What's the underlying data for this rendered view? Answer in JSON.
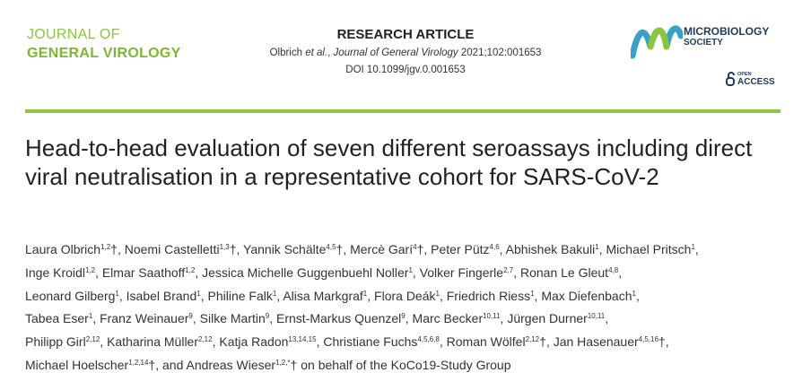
{
  "header": {
    "journal_line1": "JOURNAL OF",
    "journal_line2": "GENERAL VIROLOGY",
    "article_type": "RESEARCH ARTICLE",
    "citation": [
      "Olbrich ",
      "et al.",
      ", ",
      "Journal of General Virology",
      " 2021;102:001653"
    ],
    "doi": "DOI 10.1099/jgv.0.001653",
    "society_line1": "MICROBIOLOGY",
    "society_line2": "SOCIETY",
    "open": "OPEN",
    "access": "ACCESS"
  },
  "title": "Head-to-head evaluation of seven different seroassays including direct viral neutralisation in a representative cohort for SARS-CoV-2",
  "authors": [
    [
      {
        "name": "Laura Olbrich",
        "sup": "1,2",
        "mark": "†",
        "sep": ","
      },
      {
        "name": "Noemi Castelletti",
        "sup": "1,3",
        "mark": "†",
        "sep": ","
      },
      {
        "name": "Yannik Schälte",
        "sup": "4,5",
        "mark": "†",
        "sep": ","
      },
      {
        "name": "Mercè Garí",
        "sup": "4",
        "mark": "†",
        "sep": ","
      },
      {
        "name": "Peter Pütz",
        "sup": "4,6",
        "sep": ","
      },
      {
        "name": "Abhishek Bakuli",
        "sup": "1",
        "sep": ","
      },
      {
        "name": "Michael Pritsch",
        "sup": "1",
        "sep": ","
      }
    ],
    [
      {
        "name": "Inge Kroidl",
        "sup": "1,2",
        "sep": ","
      },
      {
        "name": "Elmar Saathoff",
        "sup": "1,2",
        "sep": ","
      },
      {
        "name": "Jessica Michelle Guggenbuehl Noller",
        "sup": "1",
        "sep": ","
      },
      {
        "name": "Volker Fingerle",
        "sup": "2,7",
        "sep": ","
      },
      {
        "name": "Ronan Le Gleut",
        "sup": "4,8",
        "sep": ","
      }
    ],
    [
      {
        "name": "Leonard Gilberg",
        "sup": "1",
        "sep": ","
      },
      {
        "name": "Isabel Brand",
        "sup": "1",
        "sep": ","
      },
      {
        "name": "Philine Falk",
        "sup": "1",
        "sep": ","
      },
      {
        "name": "Alisa Markgraf",
        "sup": "1",
        "sep": ","
      },
      {
        "name": "Flora Deák",
        "sup": "1",
        "sep": ","
      },
      {
        "name": "Friedrich Riess",
        "sup": "1",
        "sep": ","
      },
      {
        "name": "Max Diefenbach",
        "sup": "1",
        "sep": ","
      }
    ],
    [
      {
        "name": "Tabea Eser",
        "sup": "1",
        "sep": ","
      },
      {
        "name": "Franz Weinauer",
        "sup": "9",
        "sep": ","
      },
      {
        "name": "Silke Martin",
        "sup": "9",
        "sep": ","
      },
      {
        "name": "Ernst-Markus Quenzel",
        "sup": "9",
        "sep": ","
      },
      {
        "name": "Marc Becker",
        "sup": "10,11",
        "sep": ","
      },
      {
        "name": "Jürgen Durner",
        "sup": "10,11",
        "sep": ","
      }
    ],
    [
      {
        "name": "Philipp Girl",
        "sup": "2,12",
        "sep": ","
      },
      {
        "name": "Katharina Müller",
        "sup": "2,12",
        "sep": ","
      },
      {
        "name": "Katja Radon",
        "sup": "13,14,15",
        "sep": ","
      },
      {
        "name": "Christiane Fuchs",
        "sup": "4,5,6,8",
        "sep": ","
      },
      {
        "name": "Roman Wölfel",
        "sup": "2,12",
        "mark": "†",
        "sep": ","
      },
      {
        "name": "Jan Hasenauer",
        "sup": "4,5,16",
        "mark": "†",
        "sep": ","
      }
    ],
    [
      {
        "name": "Michael Hoelscher",
        "sup": "1,2,14",
        "mark": "†",
        "sep": ","
      },
      {
        "prefix": "and",
        "name": "Andreas Wieser",
        "sup": "1,2,*",
        "mark": "†"
      }
    ]
  ],
  "group": "on behalf of the KoCo19-Study Group"
}
